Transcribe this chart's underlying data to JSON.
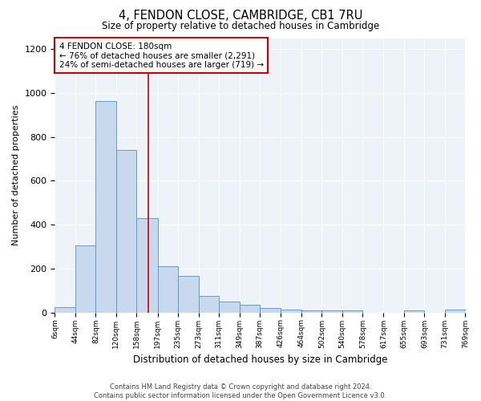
{
  "title": "4, FENDON CLOSE, CAMBRIDGE, CB1 7RU",
  "subtitle": "Size of property relative to detached houses in Cambridge",
  "xlabel": "Distribution of detached houses by size in Cambridge",
  "ylabel": "Number of detached properties",
  "bar_color": "#c8d9ed",
  "bar_edge_color": "#5a8fc2",
  "background_color": "#eef2f9",
  "grid_color": "#ffffff",
  "annotation_box_color": "#cc0000",
  "vline_color": "#cc0000",
  "vline_x": 180,
  "annotation_line1": "4 FENDON CLOSE: 180sqm",
  "annotation_line2": "← 76% of detached houses are smaller (2,291)",
  "annotation_line3": "24% of semi-detached houses are larger (719) →",
  "bin_edges": [
    6,
    44,
    82,
    120,
    158,
    197,
    235,
    273,
    311,
    349,
    387,
    426,
    464,
    502,
    540,
    578,
    617,
    655,
    693,
    731,
    769
  ],
  "bar_heights": [
    25,
    305,
    965,
    740,
    430,
    210,
    165,
    75,
    50,
    35,
    20,
    15,
    10,
    10,
    10,
    0,
    0,
    10,
    0,
    15
  ],
  "tick_labels": [
    "6sqm",
    "44sqm",
    "82sqm",
    "120sqm",
    "158sqm",
    "197sqm",
    "235sqm",
    "273sqm",
    "311sqm",
    "349sqm",
    "387sqm",
    "426sqm",
    "464sqm",
    "502sqm",
    "540sqm",
    "578sqm",
    "617sqm",
    "655sqm",
    "693sqm",
    "731sqm",
    "769sqm"
  ],
  "ylim": [
    0,
    1250
  ],
  "yticks": [
    0,
    200,
    400,
    600,
    800,
    1000,
    1200
  ],
  "footer_line1": "Contains HM Land Registry data © Crown copyright and database right 2024.",
  "footer_line2": "Contains public sector information licensed under the Open Government Licence v3.0."
}
